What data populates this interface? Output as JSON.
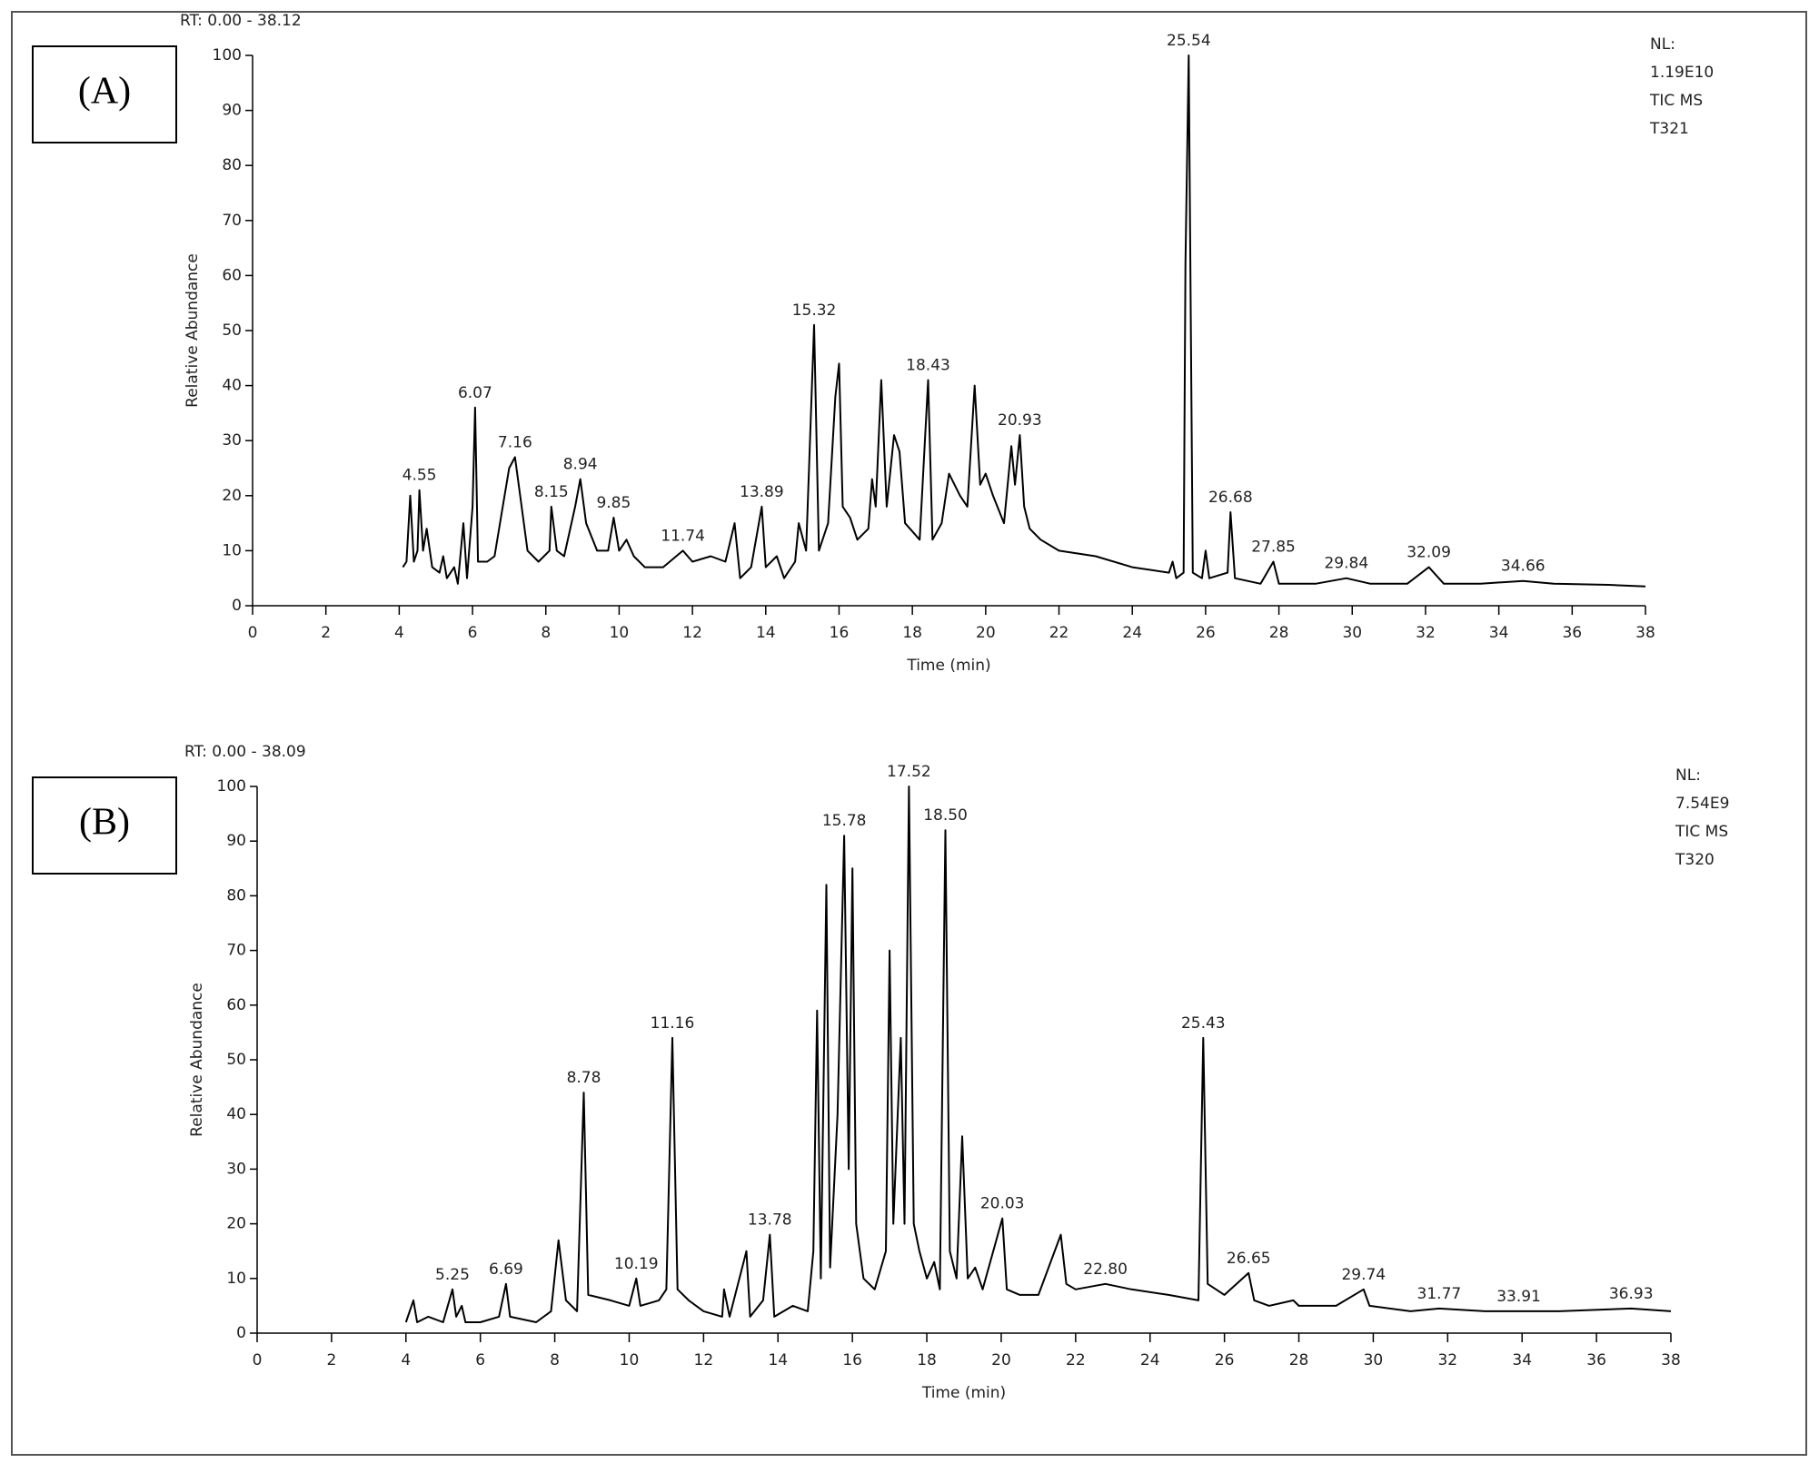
{
  "chart_data": [
    {
      "type": "line",
      "rt_label": "RT: 0.00 - 38.12",
      "panel_label": "(A)",
      "info": [
        "NL:",
        "1.19E10",
        "TIC MS",
        "T321"
      ],
      "x_label": "Time (min)",
      "y_label": "Relative Abundance",
      "xlim": [
        0,
        38
      ],
      "ylim": [
        0,
        100
      ],
      "xticks": [
        0,
        2,
        4,
        6,
        8,
        10,
        12,
        14,
        16,
        18,
        20,
        22,
        24,
        26,
        28,
        30,
        32,
        34,
        36,
        38
      ],
      "yticks": [
        0,
        10,
        20,
        30,
        40,
        50,
        60,
        70,
        80,
        90,
        100
      ],
      "color": "#000000",
      "x": [
        4.1,
        4.2,
        4.3,
        4.4,
        4.5,
        4.55,
        4.65,
        4.75,
        4.9,
        5.1,
        5.2,
        5.3,
        5.5,
        5.6,
        5.75,
        5.85,
        6.0,
        6.07,
        6.15,
        6.4,
        6.6,
        6.8,
        7.0,
        7.16,
        7.3,
        7.5,
        7.8,
        8.1,
        8.15,
        8.3,
        8.5,
        8.8,
        8.94,
        9.1,
        9.4,
        9.7,
        9.85,
        10.0,
        10.2,
        10.4,
        10.7,
        11.2,
        11.74,
        12.0,
        12.5,
        12.9,
        13.15,
        13.3,
        13.6,
        13.89,
        14.0,
        14.3,
        14.5,
        14.8,
        14.9,
        15.1,
        15.32,
        15.45,
        15.7,
        15.9,
        16.0,
        16.1,
        16.3,
        16.5,
        16.8,
        16.9,
        17.0,
        17.15,
        17.3,
        17.5,
        17.65,
        17.8,
        18.2,
        18.43,
        18.55,
        18.8,
        19.0,
        19.3,
        19.5,
        19.7,
        19.85,
        20.0,
        20.2,
        20.5,
        20.7,
        20.8,
        20.93,
        21.05,
        21.2,
        21.5,
        22.0,
        23.0,
        24.0,
        25.0,
        25.1,
        25.2,
        25.4,
        25.45,
        25.54,
        25.65,
        25.9,
        26.0,
        26.1,
        26.6,
        26.68,
        26.8,
        27.5,
        27.85,
        28.0,
        29.0,
        29.84,
        30.5,
        31.5,
        32.09,
        32.5,
        33.5,
        34.66,
        35.5,
        37.0,
        38.0
      ],
      "values": [
        7,
        8,
        20,
        8,
        10,
        21,
        10,
        14,
        7,
        6,
        9,
        5,
        7,
        4,
        15,
        5,
        18,
        36,
        8,
        8,
        9,
        17,
        25,
        27,
        20,
        10,
        8,
        10,
        18,
        10,
        9,
        18,
        23,
        15,
        10,
        10,
        16,
        10,
        12,
        9,
        7,
        7,
        10,
        8,
        9,
        8,
        15,
        5,
        7,
        18,
        7,
        9,
        5,
        8,
        15,
        10,
        51,
        10,
        15,
        38,
        44,
        18,
        16,
        12,
        14,
        23,
        18,
        41,
        18,
        31,
        28,
        15,
        12,
        41,
        12,
        15,
        24,
        20,
        18,
        40,
        22,
        24,
        20,
        15,
        29,
        22,
        31,
        18,
        14,
        12,
        10,
        9,
        7,
        6,
        8,
        5,
        6,
        62,
        100,
        6,
        5,
        10,
        5,
        6,
        17,
        5,
        4,
        8,
        4,
        4,
        5,
        4,
        4,
        7,
        4,
        4,
        4.5,
        4,
        3.8,
        3.5
      ],
      "peaks": [
        {
          "label": "4.55",
          "x": 4.55,
          "y": 21
        },
        {
          "label": "6.07",
          "x": 6.07,
          "y": 36
        },
        {
          "label": "7.16",
          "x": 7.16,
          "y": 27
        },
        {
          "label": "8.15",
          "x": 8.15,
          "y": 18
        },
        {
          "label": "8.94",
          "x": 8.94,
          "y": 23
        },
        {
          "label": "9.85",
          "x": 9.85,
          "y": 16
        },
        {
          "label": "11.74",
          "x": 11.74,
          "y": 10
        },
        {
          "label": "13.89",
          "x": 13.89,
          "y": 18
        },
        {
          "label": "15.32",
          "x": 15.32,
          "y": 51
        },
        {
          "label": "18.43",
          "x": 18.43,
          "y": 41
        },
        {
          "label": "20.93",
          "x": 20.93,
          "y": 31
        },
        {
          "label": "25.54",
          "x": 25.54,
          "y": 100
        },
        {
          "label": "26.68",
          "x": 26.68,
          "y": 17
        },
        {
          "label": "27.85",
          "x": 27.85,
          "y": 8
        },
        {
          "label": "29.84",
          "x": 29.84,
          "y": 5
        },
        {
          "label": "32.09",
          "x": 32.09,
          "y": 7
        },
        {
          "label": "34.66",
          "x": 34.66,
          "y": 4.5
        }
      ]
    },
    {
      "type": "line",
      "rt_label": "RT: 0.00 - 38.09",
      "panel_label": "(B)",
      "info": [
        "NL:",
        "7.54E9",
        "TIC MS",
        "T320"
      ],
      "x_label": "Time (min)",
      "y_label": "Relative Abundance",
      "xlim": [
        0,
        38
      ],
      "ylim": [
        0,
        100
      ],
      "xticks": [
        0,
        2,
        4,
        6,
        8,
        10,
        12,
        14,
        16,
        18,
        20,
        22,
        24,
        26,
        28,
        30,
        32,
        34,
        36,
        38
      ],
      "yticks": [
        0,
        10,
        20,
        30,
        40,
        50,
        60,
        70,
        80,
        90,
        100
      ],
      "color": "#000000",
      "x": [
        4.0,
        4.1,
        4.2,
        4.3,
        4.6,
        5.0,
        5.25,
        5.35,
        5.5,
        5.6,
        6.0,
        6.5,
        6.69,
        6.8,
        7.5,
        7.9,
        8.1,
        8.3,
        8.6,
        8.78,
        8.9,
        9.5,
        10.0,
        10.19,
        10.3,
        10.8,
        11.0,
        11.16,
        11.3,
        11.6,
        12.0,
        12.5,
        12.55,
        12.7,
        13.15,
        13.25,
        13.6,
        13.78,
        13.9,
        14.4,
        14.8,
        14.95,
        15.05,
        15.15,
        15.3,
        15.4,
        15.6,
        15.78,
        15.9,
        16.0,
        16.1,
        16.3,
        16.6,
        16.9,
        17.0,
        17.1,
        17.3,
        17.4,
        17.52,
        17.65,
        17.8,
        18.0,
        18.2,
        18.35,
        18.5,
        18.62,
        18.8,
        18.95,
        19.1,
        19.3,
        19.5,
        20.03,
        20.15,
        20.5,
        21.0,
        21.6,
        21.75,
        22.0,
        22.8,
        23.5,
        24.5,
        25.3,
        25.43,
        25.55,
        26.0,
        26.65,
        26.8,
        27.2,
        27.85,
        28.0,
        29.0,
        29.74,
        29.9,
        31.0,
        31.77,
        33.0,
        33.91,
        35.0,
        36.93,
        38.0
      ],
      "values": [
        2,
        4,
        6,
        2,
        3,
        2,
        8,
        3,
        5,
        2,
        2,
        3,
        9,
        3,
        2,
        4,
        17,
        6,
        4,
        44,
        7,
        6,
        5,
        10,
        5,
        6,
        8,
        54,
        8,
        6,
        4,
        3,
        8,
        3,
        15,
        3,
        6,
        18,
        3,
        5,
        4,
        15,
        59,
        10,
        82,
        12,
        40,
        91,
        30,
        85,
        20,
        10,
        8,
        15,
        70,
        20,
        54,
        20,
        100,
        20,
        15,
        10,
        13,
        8,
        92,
        15,
        10,
        36,
        10,
        12,
        8,
        21,
        8,
        7,
        7,
        18,
        9,
        8,
        9,
        8,
        7,
        6,
        54,
        9,
        7,
        11,
        6,
        5,
        6,
        5,
        5,
        8,
        5,
        4,
        4.5,
        4,
        4,
        4,
        4.5,
        4
      ],
      "peaks": [
        {
          "label": "5.25",
          "x": 5.25,
          "y": 8
        },
        {
          "label": "6.69",
          "x": 6.69,
          "y": 9
        },
        {
          "label": "8.78",
          "x": 8.78,
          "y": 44
        },
        {
          "label": "10.19",
          "x": 10.19,
          "y": 10
        },
        {
          "label": "11.16",
          "x": 11.16,
          "y": 54
        },
        {
          "label": "13.78",
          "x": 13.78,
          "y": 18
        },
        {
          "label": "15.78",
          "x": 15.78,
          "y": 91
        },
        {
          "label": "17.52",
          "x": 17.52,
          "y": 100
        },
        {
          "label": "18.50",
          "x": 18.5,
          "y": 92
        },
        {
          "label": "20.03",
          "x": 20.03,
          "y": 21
        },
        {
          "label": "22.80",
          "x": 22.8,
          "y": 9
        },
        {
          "label": "25.43",
          "x": 25.43,
          "y": 54
        },
        {
          "label": "26.65",
          "x": 26.65,
          "y": 11
        },
        {
          "label": "29.74",
          "x": 29.74,
          "y": 8
        },
        {
          "label": "31.77",
          "x": 31.77,
          "y": 4.5
        },
        {
          "label": "33.91",
          "x": 33.91,
          "y": 4
        },
        {
          "label": "36.93",
          "x": 36.93,
          "y": 4.5
        }
      ]
    }
  ]
}
